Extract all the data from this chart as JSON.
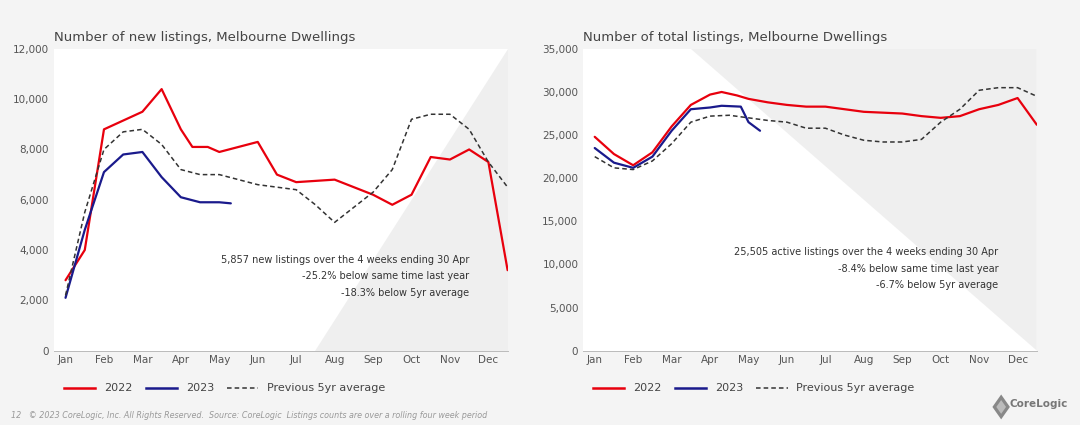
{
  "bg_color": "#f4f4f4",
  "chart_bg": "#ffffff",
  "title1": "Number of new listings, Melbourne Dwellings",
  "title2": "Number of total listings, Melbourne Dwellings",
  "months": [
    "Jan",
    "Feb",
    "Mar",
    "Apr",
    "May",
    "Jun",
    "Jul",
    "Aug",
    "Sep",
    "Oct",
    "Nov",
    "Dec"
  ],
  "new_2022": [
    2800,
    5500,
    8800,
    10400,
    8100,
    7900,
    8300,
    8300,
    6900,
    6900,
    6300,
    7600,
    8000,
    7300,
    3200
  ],
  "new_2022_x": [
    0,
    0.5,
    1,
    2,
    2.5,
    3,
    3.3,
    3.7,
    4,
    4.5,
    5,
    5.5,
    6,
    7,
    7.5,
    8,
    8.5,
    9,
    9.5,
    10,
    10.5,
    11,
    11.5
  ],
  "new_2022_y": [
    2800,
    4000,
    8800,
    9500,
    10400,
    8800,
    8100,
    8100,
    7900,
    8100,
    8300,
    7000,
    6700,
    6800,
    6500,
    6200,
    5800,
    6200,
    7700,
    7600,
    8000,
    7500,
    3200
  ],
  "new_2023_x": [
    0,
    0.5,
    1,
    1.5,
    2,
    2.5,
    3,
    3.5,
    4,
    4.3
  ],
  "new_2023_y": [
    2100,
    4800,
    7100,
    7800,
    7900,
    6900,
    6100,
    5900,
    5900,
    5857
  ],
  "new_5yr_x": [
    0,
    0.5,
    1,
    1.5,
    2,
    2.5,
    3,
    3.5,
    4,
    4.5,
    5,
    5.5,
    6,
    6.5,
    7,
    7.5,
    8,
    8.5,
    9,
    9.5,
    10,
    10.5,
    11,
    11.5
  ],
  "new_5yr_y": [
    2200,
    5500,
    8000,
    8700,
    8800,
    8200,
    7200,
    7000,
    7000,
    6800,
    6600,
    6500,
    6400,
    5800,
    5100,
    5700,
    6300,
    7200,
    9200,
    9400,
    9400,
    8800,
    7500,
    6500
  ],
  "new_annotation": "5,857 new listings over the 4 weeks ending 30 Apr\n-25.2% below same time last year\n-18.3% below 5yr average",
  "new_ylim": [
    0,
    12000
  ],
  "new_yticks": [
    0,
    2000,
    4000,
    6000,
    8000,
    10000,
    12000
  ],
  "total_2022_x": [
    0,
    0.5,
    1,
    1.5,
    2,
    2.5,
    3,
    3.3,
    3.7,
    4,
    4.5,
    5,
    5.5,
    6,
    6.5,
    7,
    7.5,
    8,
    8.5,
    9,
    9.5,
    10,
    10.5,
    11,
    11.5
  ],
  "total_2022_y": [
    24800,
    22800,
    21500,
    23000,
    26000,
    28500,
    29700,
    30000,
    29600,
    29200,
    28800,
    28500,
    28300,
    28300,
    28000,
    27700,
    27600,
    27500,
    27200,
    27000,
    27200,
    28000,
    28500,
    29300,
    26200
  ],
  "total_2023_x": [
    0,
    0.5,
    1,
    1.5,
    2,
    2.5,
    3,
    3.3,
    3.8,
    4,
    4.3
  ],
  "total_2023_y": [
    23500,
    21800,
    21200,
    22500,
    25500,
    28000,
    28200,
    28400,
    28300,
    26500,
    25505
  ],
  "total_5yr_x": [
    0,
    0.5,
    1,
    1.5,
    2,
    2.5,
    3,
    3.5,
    4,
    4.5,
    5,
    5.5,
    6,
    6.5,
    7,
    7.5,
    8,
    8.5,
    9,
    9.5,
    10,
    10.5,
    11,
    11.5
  ],
  "total_5yr_y": [
    22500,
    21200,
    21000,
    22000,
    24000,
    26500,
    27200,
    27300,
    27000,
    26700,
    26500,
    25800,
    25800,
    25000,
    24400,
    24200,
    24200,
    24500,
    26500,
    28000,
    30200,
    30500,
    30500,
    29500
  ],
  "total_annotation": "25,505 active listings over the 4 weeks ending 30 Apr\n-8.4% below same time last year\n-6.7% below 5yr average",
  "total_ylim": [
    0,
    35000
  ],
  "total_yticks": [
    0,
    5000,
    10000,
    15000,
    20000,
    25000,
    30000,
    35000
  ],
  "color_2022": "#e8000d",
  "color_2023": "#1a1a8c",
  "color_5yr": "#333333",
  "footer_text": "12   © 2023 CoreLogic, Inc. All Rights Reserved.  Source: CoreLogic  Listings counts are over a rolling four week period",
  "annotation_fontsize": 7.0,
  "title_fontsize": 9.5,
  "tick_fontsize": 7.5,
  "legend_fontsize": 8.0
}
